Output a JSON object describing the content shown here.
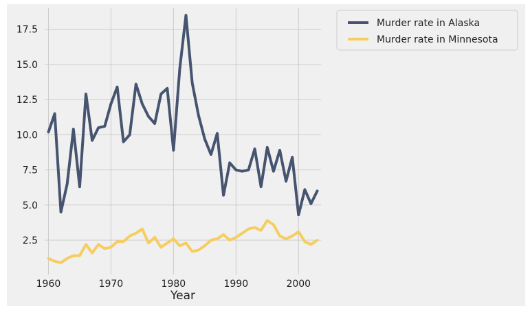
{
  "chart_data": {
    "type": "line",
    "title": "",
    "xlabel": "Year",
    "ylabel": "",
    "xlim": [
      1959.4,
      2003.6
    ],
    "ylim": [
      0.06,
      19.0
    ],
    "xticks": [
      1960,
      1970,
      1980,
      1990,
      2000
    ],
    "yticks": [
      2.5,
      5.0,
      7.5,
      10.0,
      12.5,
      15.0,
      17.5
    ],
    "ytick_labels": [
      "2.5",
      "5.0",
      "7.5",
      "10.0",
      "12.5",
      "15.0",
      "17.5"
    ],
    "grid": true,
    "legend_position": "outside-upper-right",
    "x": [
      1960,
      1961,
      1962,
      1963,
      1964,
      1965,
      1966,
      1967,
      1968,
      1969,
      1970,
      1971,
      1972,
      1973,
      1974,
      1975,
      1976,
      1977,
      1978,
      1979,
      1980,
      1981,
      1982,
      1983,
      1984,
      1985,
      1986,
      1987,
      1988,
      1989,
      1990,
      1991,
      1992,
      1993,
      1994,
      1995,
      1996,
      1997,
      1998,
      1999,
      2000,
      2001,
      2002,
      2003
    ],
    "series": [
      {
        "name": "Murder rate in Alaska",
        "color": "#46546f",
        "values": [
          10.2,
          11.5,
          4.5,
          6.5,
          10.4,
          6.3,
          12.9,
          9.6,
          10.5,
          10.6,
          12.2,
          13.4,
          9.5,
          10.0,
          13.6,
          12.2,
          11.3,
          10.8,
          12.9,
          13.3,
          8.9,
          14.7,
          18.5,
          13.7,
          11.4,
          9.7,
          8.6,
          10.1,
          5.7,
          8.0,
          7.5,
          7.4,
          7.5,
          9.0,
          6.3,
          9.1,
          7.4,
          8.9,
          6.7,
          8.4,
          4.3,
          6.1,
          5.1,
          6.0
        ]
      },
      {
        "name": "Murder rate in Minnesota",
        "color": "#f6cd61",
        "values": [
          1.2,
          1.0,
          0.9,
          1.2,
          1.4,
          1.4,
          2.2,
          1.6,
          2.2,
          1.9,
          2.0,
          2.4,
          2.4,
          2.8,
          3.0,
          3.3,
          2.3,
          2.7,
          2.0,
          2.3,
          2.6,
          2.1,
          2.3,
          1.7,
          1.8,
          2.1,
          2.5,
          2.6,
          2.9,
          2.5,
          2.7,
          3.0,
          3.3,
          3.4,
          3.2,
          3.9,
          3.6,
          2.8,
          2.6,
          2.8,
          3.1,
          2.4,
          2.2,
          2.5
        ]
      }
    ]
  }
}
